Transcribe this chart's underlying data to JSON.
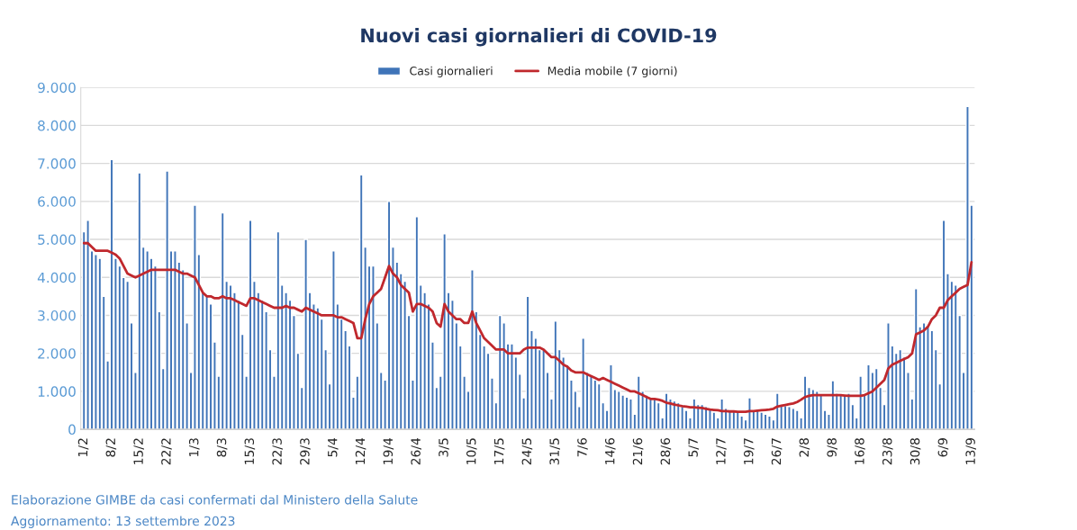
{
  "chart_data": {
    "type": "bar",
    "title": "Nuovi casi giornalieri di COVID-19",
    "categories": [
      "1/2",
      null,
      null,
      null,
      null,
      null,
      null,
      "8/2",
      null,
      null,
      null,
      null,
      null,
      null,
      "15/2",
      null,
      null,
      null,
      null,
      null,
      null,
      "22/2",
      null,
      null,
      null,
      null,
      null,
      null,
      "1/3",
      null,
      null,
      null,
      null,
      null,
      null,
      "8/3",
      null,
      null,
      null,
      null,
      null,
      null,
      "15/3",
      null,
      null,
      null,
      null,
      null,
      null,
      "22/3",
      null,
      null,
      null,
      null,
      null,
      null,
      "29/3",
      null,
      null,
      null,
      null,
      null,
      null,
      "5/4",
      null,
      null,
      null,
      null,
      null,
      null,
      "12/4",
      null,
      null,
      null,
      null,
      null,
      null,
      "19/4",
      null,
      null,
      null,
      null,
      null,
      null,
      "26/4",
      null,
      null,
      null,
      null,
      null,
      null,
      "3/5",
      null,
      null,
      null,
      null,
      null,
      null,
      "10/5",
      null,
      null,
      null,
      null,
      null,
      null,
      "17/5",
      null,
      null,
      null,
      null,
      null,
      null,
      "24/5",
      null,
      null,
      null,
      null,
      null,
      null,
      "31/5",
      null,
      null,
      null,
      null,
      null,
      null,
      "7/6",
      null,
      null,
      null,
      null,
      null,
      null,
      "14/6",
      null,
      null,
      null,
      null,
      null,
      null,
      "21/6",
      null,
      null,
      null,
      null,
      null,
      null,
      "28/6",
      null,
      null,
      null,
      null,
      null,
      null,
      "5/7",
      null,
      null,
      null,
      null,
      null,
      null,
      "12/7",
      null,
      null,
      null,
      null,
      null,
      null,
      "19/7",
      null,
      null,
      null,
      null,
      null,
      null,
      "26/7",
      null,
      null,
      null,
      null,
      null,
      null,
      "2/8",
      null,
      null,
      null,
      null,
      null,
      null,
      "9/8",
      null,
      null,
      null,
      null,
      null,
      null,
      "16/8",
      null,
      null,
      null,
      null,
      null,
      null,
      "23/8",
      null,
      null,
      null,
      null,
      null,
      null,
      "30/8",
      null,
      null,
      null,
      null,
      null,
      null,
      "6/9",
      null,
      null,
      null,
      null,
      null,
      null,
      "13/9"
    ],
    "series": [
      {
        "name": "Casi giornalieri",
        "color": "#3f74b8",
        "values": [
          5200,
          5500,
          4700,
          4600,
          4500,
          3500,
          1800,
          7100,
          4500,
          4300,
          4000,
          3900,
          2800,
          1500,
          6750,
          4800,
          4700,
          4500,
          4300,
          3100,
          1600,
          6800,
          4700,
          4700,
          4400,
          4200,
          2800,
          1500,
          5900,
          4600,
          3600,
          3500,
          3300,
          2300,
          1400,
          5700,
          3900,
          3800,
          3600,
          3400,
          2500,
          1400,
          5500,
          3900,
          3600,
          3400,
          3100,
          2100,
          1400,
          5200,
          3800,
          3600,
          3400,
          3000,
          2000,
          1100,
          5000,
          3600,
          3300,
          3200,
          2900,
          2100,
          1200,
          4700,
          3300,
          2900,
          2600,
          2200,
          850,
          1400,
          6700,
          4800,
          4300,
          4300,
          2800,
          1500,
          1300,
          6000,
          4800,
          4400,
          4100,
          3900,
          3000,
          1300,
          5600,
          3800,
          3600,
          3300,
          2300,
          1100,
          1400,
          5150,
          3600,
          3400,
          2800,
          2200,
          1400,
          1000,
          4200,
          3100,
          2500,
          2200,
          2000,
          1350,
          700,
          3000,
          2800,
          2250,
          2250,
          1900,
          1450,
          830,
          3500,
          2600,
          2400,
          2100,
          2100,
          1500,
          800,
          2850,
          2100,
          1900,
          1700,
          1300,
          1000,
          600,
          2400,
          1500,
          1400,
          1300,
          1200,
          700,
          500,
          1700,
          1050,
          1000,
          900,
          850,
          800,
          400,
          1400,
          1000,
          900,
          850,
          800,
          700,
          300,
          950,
          800,
          750,
          700,
          600,
          500,
          300,
          800,
          650,
          650,
          600,
          550,
          450,
          300,
          800,
          550,
          500,
          500,
          450,
          350,
          250,
          830,
          500,
          500,
          450,
          400,
          350,
          250,
          950,
          650,
          620,
          600,
          550,
          500,
          300,
          1400,
          1100,
          1050,
          1000,
          900,
          500,
          400,
          1280,
          950,
          900,
          900,
          950,
          650,
          300,
          1400,
          900,
          1700,
          1500,
          1600,
          1100,
          650,
          2800,
          2200,
          2000,
          2100,
          1900,
          1500,
          800,
          3700,
          2700,
          2800,
          2700,
          2600,
          2100,
          1200,
          5500,
          4100,
          3900,
          3800,
          3000,
          1500,
          8500,
          5900
        ]
      },
      {
        "name": "Media mobile (7 giorni)",
        "type": "line",
        "color": "#c0282d",
        "values": [
          4900,
          4900,
          4800,
          4700,
          4700,
          4700,
          4700,
          4650,
          4600,
          4500,
          4300,
          4100,
          4050,
          4000,
          4050,
          4100,
          4150,
          4200,
          4200,
          4200,
          4200,
          4200,
          4200,
          4200,
          4150,
          4100,
          4100,
          4050,
          4000,
          3800,
          3600,
          3500,
          3500,
          3450,
          3450,
          3500,
          3450,
          3450,
          3400,
          3350,
          3300,
          3250,
          3450,
          3450,
          3400,
          3350,
          3300,
          3250,
          3200,
          3200,
          3200,
          3250,
          3200,
          3200,
          3150,
          3100,
          3200,
          3150,
          3100,
          3050,
          3000,
          3000,
          3000,
          3000,
          2950,
          2950,
          2900,
          2850,
          2800,
          2400,
          2400,
          2900,
          3300,
          3500,
          3600,
          3700,
          4000,
          4300,
          4100,
          4000,
          3800,
          3700,
          3600,
          3100,
          3300,
          3300,
          3250,
          3200,
          3100,
          2800,
          2700,
          3300,
          3100,
          3000,
          2900,
          2900,
          2800,
          2800,
          3100,
          2800,
          2600,
          2400,
          2300,
          2200,
          2100,
          2100,
          2100,
          2000,
          2000,
          2000,
          2000,
          2100,
          2150,
          2150,
          2150,
          2150,
          2100,
          2000,
          1900,
          1900,
          1800,
          1700,
          1650,
          1550,
          1500,
          1500,
          1500,
          1450,
          1400,
          1350,
          1300,
          1350,
          1300,
          1250,
          1200,
          1150,
          1100,
          1050,
          1000,
          1000,
          950,
          900,
          850,
          800,
          800,
          780,
          750,
          700,
          680,
          650,
          630,
          610,
          600,
          580,
          580,
          570,
          560,
          540,
          520,
          510,
          500,
          480,
          480,
          470,
          470,
          460,
          460,
          460,
          480,
          480,
          490,
          500,
          510,
          520,
          540,
          600,
          620,
          640,
          660,
          680,
          720,
          780,
          850,
          880,
          900,
          900,
          900,
          900,
          900,
          900,
          900,
          900,
          890,
          880,
          880,
          880,
          880,
          900,
          950,
          1000,
          1100,
          1200,
          1300,
          1600,
          1700,
          1750,
          1800,
          1850,
          1900,
          2000,
          2500,
          2550,
          2600,
          2700,
          2900,
          3000,
          3200,
          3200,
          3400,
          3500,
          3600,
          3700,
          3750,
          3800,
          4400
        ]
      }
    ],
    "ylim": [
      0,
      9000
    ],
    "yticks": [
      0,
      {
        "value": 1000,
        "label": "1.000"
      },
      {
        "value": 2000,
        "label": "2.000"
      },
      {
        "value": 3000,
        "label": "3.000"
      },
      {
        "value": 4000,
        "label": "4.000"
      },
      {
        "value": 5000,
        "label": "5.000"
      },
      {
        "value": 6000,
        "label": "6.000"
      },
      {
        "value": 7000,
        "label": "7.000"
      },
      {
        "value": 8000,
        "label": "8.000"
      },
      {
        "value": 9000,
        "label": "9.000"
      }
    ],
    "grid": "y",
    "legend": "top",
    "annotations": [
      "Elaborazione GIMBE da casi confermati dal Ministero della Salute",
      "Aggiornamento: 13 settembre 2023"
    ]
  }
}
